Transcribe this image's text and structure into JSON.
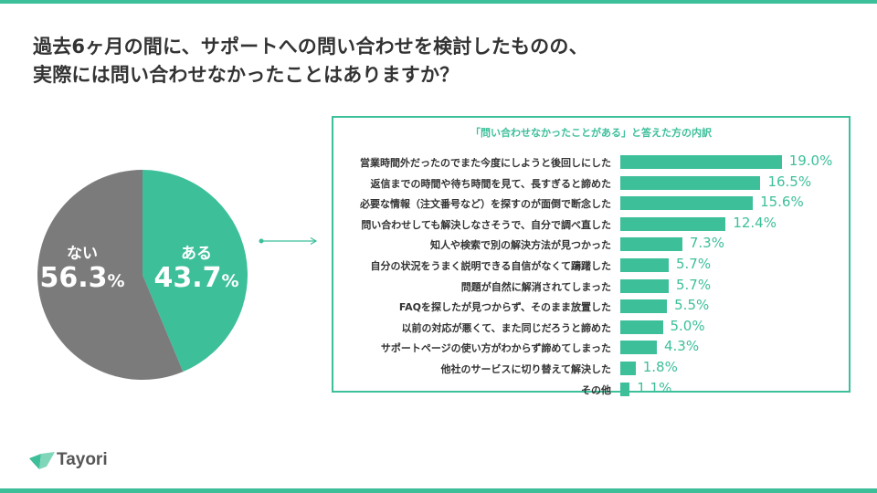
{
  "title": {
    "line1": "過去6ヶ月の間に、サポートへの問い合わせを検討したものの、",
    "line2": "実際には問い合わせなかったことはありますか？"
  },
  "colors": {
    "accent": "#3dbf9a",
    "gray": "#7b7b7b"
  },
  "brand": {
    "name": "Tayori"
  },
  "chart_data": [
    {
      "type": "pie",
      "slices": [
        {
          "label": "ある",
          "value": 43.7,
          "value_text": "43.7",
          "unit": "%",
          "color": "#3dbf9a"
        },
        {
          "label": "ない",
          "value": 56.3,
          "value_text": "56.3",
          "unit": "%",
          "color": "#7b7b7b"
        }
      ]
    },
    {
      "type": "bar",
      "orientation": "horizontal",
      "title": "「問い合わせなかったことがある」と答えた方の内訳",
      "categories": [
        "営業時間外だったのでまた今度にしようと後回しにした",
        "返信までの時間や待ち時間を見て、長すぎると諦めた",
        "必要な情報（注文番号など）を探すのが面倒で断念した",
        "問い合わせしても解決しなさそうで、自分で調べ直した",
        "知人や検索で別の解決方法が見つかった",
        "自分の状況をうまく説明できる自信がなくて躊躇した",
        "問題が自然に解消されてしまった",
        "FAQを探したが見つからず、そのまま放置した",
        "以前の対応が悪くて、また同じだろうと諦めた",
        "サポートページの使い方がわからず諦めてしまった",
        "他社のサービスに切り替えて解決した",
        "その他"
      ],
      "values": [
        19.0,
        16.5,
        15.6,
        12.4,
        7.3,
        5.7,
        5.7,
        5.5,
        5.0,
        4.3,
        1.8,
        1.1
      ],
      "labels": [
        "19.0%",
        "16.5%",
        "15.6%",
        "12.4%",
        "7.3%",
        "5.7%",
        "5.7%",
        "5.5%",
        "5.0%",
        "4.3%",
        "1.8%",
        "1.1%"
      ],
      "xlim": [
        0,
        20
      ]
    }
  ]
}
